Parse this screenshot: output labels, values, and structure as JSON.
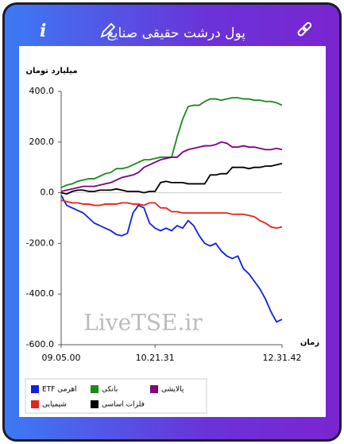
{
  "header": {
    "title": "پول درشت حقیقی صنایع"
  },
  "chart_data": {
    "type": "line",
    "y_axis_label": "میلیارد تومان",
    "x_axis_label": "زمان",
    "watermark": "LiveTSE.ir",
    "categories": [
      "09.05.00",
      null,
      null,
      null,
      null,
      null,
      null,
      null,
      null,
      null,
      null,
      null,
      null,
      null,
      null,
      null,
      null,
      "10.21.31",
      null,
      null,
      null,
      null,
      null,
      null,
      null,
      null,
      null,
      null,
      null,
      null,
      null,
      null,
      null,
      null,
      null,
      null,
      null,
      null,
      null,
      null,
      "12.31.42"
    ],
    "ylim": [
      -600,
      400
    ],
    "yticks": [
      {
        "value": 400,
        "label": "400.0"
      },
      {
        "value": 200,
        "label": "200.0"
      },
      {
        "value": 0,
        "label": "0.0"
      },
      {
        "value": -200,
        "label": "-200.0"
      },
      {
        "value": -400,
        "label": "-400.0"
      },
      {
        "value": -600,
        "label": "-600.0"
      }
    ],
    "series": [
      {
        "name": "ETF اهرمی",
        "color": "#1020e0",
        "values": [
          -10,
          -50,
          -60,
          -70,
          -80,
          -100,
          -120,
          -130,
          -140,
          -150,
          -165,
          -170,
          -160,
          -80,
          -50,
          -60,
          -120,
          -140,
          -150,
          -140,
          -150,
          -130,
          -140,
          -110,
          -130,
          -170,
          -200,
          -210,
          -200,
          -230,
          -250,
          -260,
          -250,
          -300,
          -320,
          -350,
          -380,
          -420,
          -470,
          -510,
          -500
        ]
      },
      {
        "name": "بانکی",
        "color": "#1a8a1a",
        "values": [
          20,
          30,
          35,
          45,
          50,
          55,
          55,
          65,
          75,
          80,
          95,
          95,
          100,
          110,
          120,
          130,
          130,
          135,
          140,
          140,
          140,
          220,
          290,
          340,
          345,
          345,
          360,
          370,
          370,
          365,
          370,
          375,
          375,
          370,
          370,
          365,
          365,
          360,
          360,
          355,
          345
        ]
      },
      {
        "name": "پالایشی",
        "color": "#800080",
        "values": [
          5,
          10,
          15,
          20,
          25,
          25,
          25,
          30,
          35,
          40,
          50,
          60,
          65,
          70,
          80,
          100,
          110,
          120,
          130,
          135,
          140,
          140,
          160,
          170,
          175,
          180,
          185,
          185,
          190,
          200,
          195,
          180,
          180,
          185,
          180,
          180,
          175,
          170,
          170,
          175,
          170
        ]
      },
      {
        "name": "شیمیایی",
        "color": "#e8201a",
        "values": [
          -30,
          -35,
          -40,
          -40,
          -45,
          -45,
          -50,
          -50,
          -45,
          -45,
          -45,
          -40,
          -40,
          -45,
          -45,
          -50,
          -40,
          -40,
          -60,
          -60,
          -75,
          -75,
          -80,
          -80,
          -80,
          -80,
          -80,
          -80,
          -80,
          -80,
          -80,
          -85,
          -85,
          -85,
          -90,
          -95,
          -110,
          -120,
          -135,
          -140,
          -135
        ]
      },
      {
        "name": "فلزات اساسی",
        "color": "#000000",
        "values": [
          0,
          -5,
          5,
          10,
          10,
          5,
          5,
          10,
          10,
          10,
          15,
          10,
          5,
          5,
          5,
          0,
          5,
          5,
          40,
          45,
          40,
          40,
          40,
          35,
          35,
          35,
          35,
          70,
          70,
          75,
          75,
          100,
          100,
          100,
          95,
          100,
          100,
          105,
          105,
          110,
          115
        ]
      }
    ]
  }
}
